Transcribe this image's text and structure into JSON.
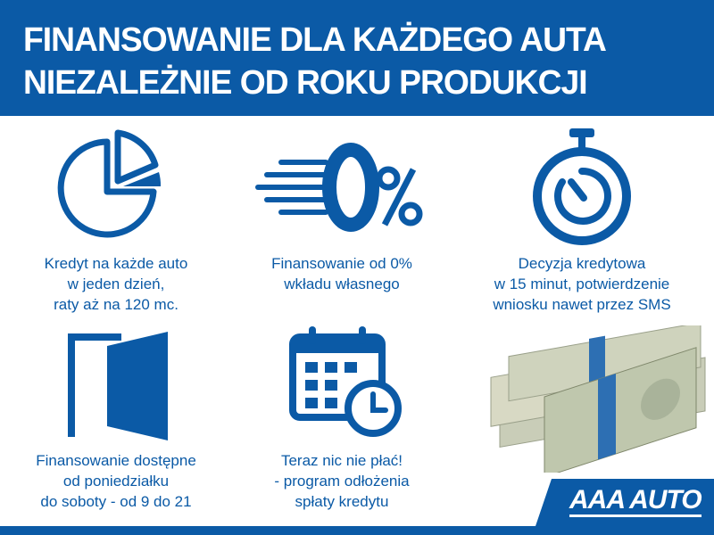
{
  "header": {
    "line1": "FINANSOWANIE DLA KAŻDEGO AUTA",
    "line2": "NIEZALEŻNIE OD ROKU PRODUKCJI"
  },
  "features": [
    {
      "icon": "pie-chart-icon",
      "lines": [
        "Kredyt na każde auto",
        "w jeden dzień,",
        "raty aż na 120 mc."
      ]
    },
    {
      "icon": "zero-percent-icon",
      "lines": [
        "Finansowanie od 0%",
        "wkładu własnego"
      ]
    },
    {
      "icon": "stopwatch-icon",
      "lines": [
        "Decyzja kredytowa",
        "w 15 minut, potwierdzenie",
        "wniosku nawet przez SMS"
      ]
    },
    {
      "icon": "open-door-icon",
      "lines": [
        "Finansowanie dostępne",
        "od poniedziałku",
        "do soboty - od 9 do 21"
      ]
    },
    {
      "icon": "calendar-clock-icon",
      "lines": [
        "Teraz nic nie płać!",
        "- program odłożenia",
        "spłaty kredytu"
      ]
    }
  ],
  "logo": "AAA AUTO",
  "colors": {
    "brand": "#0b5aa6"
  }
}
